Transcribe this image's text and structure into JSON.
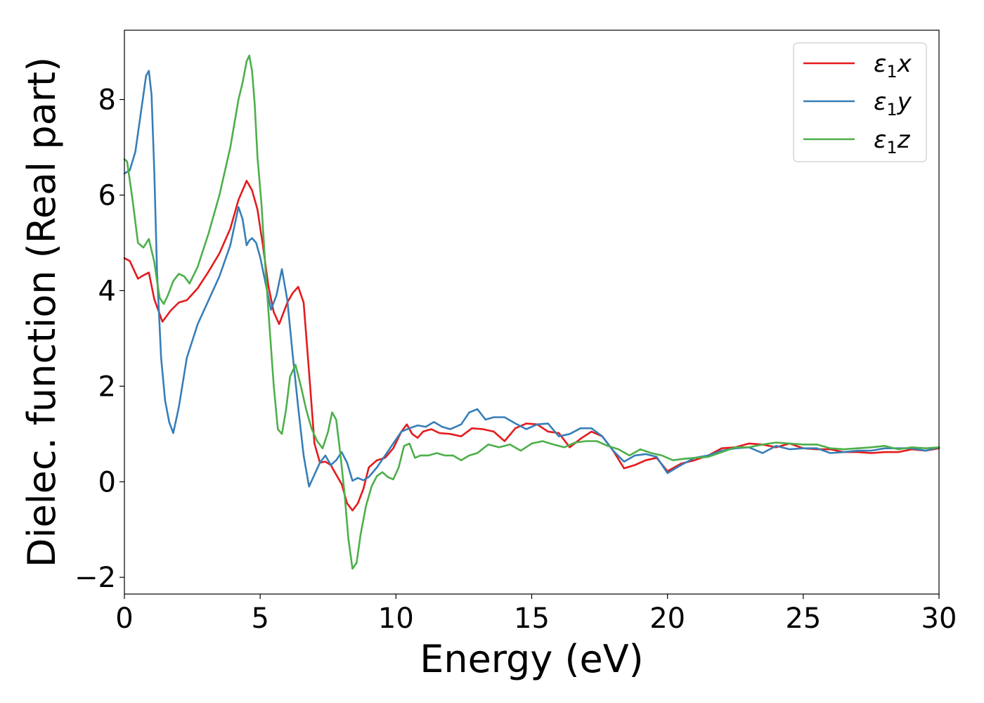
{
  "chart_data": {
    "type": "line",
    "xlabel": "Energy (eV)",
    "ylabel": "Dielec. function (Real part)",
    "xlim": [
      0,
      30
    ],
    "ylim": [
      -2.35,
      9.45
    ],
    "xticks": [
      0,
      5,
      10,
      15,
      20,
      25,
      30
    ],
    "yticks": [
      -2,
      0,
      2,
      4,
      6,
      8
    ],
    "grid": false,
    "legend_position": "top-right",
    "series": [
      {
        "name": "ε1x",
        "legend_base": "ε",
        "legend_sub": "1",
        "legend_tail": "x",
        "color": "#e41a1c",
        "x": [
          0,
          0.2,
          0.5,
          0.7,
          0.9,
          1.1,
          1.4,
          1.7,
          2.0,
          2.3,
          2.7,
          3.1,
          3.5,
          3.9,
          4.2,
          4.5,
          4.7,
          4.9,
          5.1,
          5.3,
          5.5,
          5.7,
          6.0,
          6.2,
          6.4,
          6.6,
          6.8,
          7.0,
          7.2,
          7.4,
          7.6,
          7.8,
          8.0,
          8.2,
          8.4,
          8.6,
          8.8,
          9.0,
          9.3,
          9.6,
          9.9,
          10.2,
          10.4,
          10.6,
          10.8,
          11.0,
          11.3,
          11.6,
          12.0,
          12.4,
          12.8,
          13.2,
          13.6,
          14.0,
          14.4,
          14.8,
          15.2,
          15.6,
          16.0,
          16.4,
          16.8,
          17.2,
          17.6,
          18.0,
          18.4,
          18.8,
          19.2,
          19.6,
          20.0,
          20.5,
          21.0,
          21.5,
          22.0,
          22.5,
          23.0,
          23.5,
          24.0,
          24.5,
          25.0,
          25.5,
          26.0,
          26.5,
          27.0,
          27.5,
          28.0,
          28.5,
          29.0,
          29.5,
          30.0
        ],
        "values": [
          4.68,
          4.62,
          4.25,
          4.32,
          4.38,
          3.82,
          3.35,
          3.58,
          3.75,
          3.8,
          4.05,
          4.4,
          4.78,
          5.3,
          5.9,
          6.3,
          6.1,
          5.7,
          4.95,
          4.1,
          3.55,
          3.3,
          3.75,
          3.95,
          4.08,
          3.75,
          2.3,
          0.8,
          0.4,
          0.42,
          0.35,
          0.15,
          -0.05,
          -0.45,
          -0.6,
          -0.45,
          -0.15,
          0.3,
          0.45,
          0.5,
          0.7,
          1.05,
          1.2,
          1.0,
          0.92,
          1.05,
          1.1,
          1.02,
          1.0,
          0.95,
          1.12,
          1.1,
          1.05,
          0.85,
          1.12,
          1.22,
          1.2,
          1.05,
          1.02,
          0.72,
          0.9,
          1.05,
          0.95,
          0.65,
          0.28,
          0.35,
          0.45,
          0.5,
          0.22,
          0.38,
          0.45,
          0.55,
          0.7,
          0.72,
          0.8,
          0.78,
          0.72,
          0.8,
          0.7,
          0.68,
          0.68,
          0.62,
          0.62,
          0.6,
          0.62,
          0.62,
          0.68,
          0.65,
          0.7
        ]
      },
      {
        "name": "ε1y",
        "legend_base": "ε",
        "legend_sub": "1",
        "legend_tail": "y",
        "color": "#377eb8",
        "x": [
          0,
          0.2,
          0.4,
          0.6,
          0.8,
          0.9,
          1.0,
          1.1,
          1.2,
          1.35,
          1.5,
          1.65,
          1.8,
          2.0,
          2.3,
          2.7,
          3.1,
          3.5,
          3.9,
          4.2,
          4.35,
          4.5,
          4.6,
          4.7,
          4.85,
          5.0,
          5.2,
          5.4,
          5.6,
          5.8,
          6.0,
          6.2,
          6.4,
          6.6,
          6.8,
          7.0,
          7.2,
          7.4,
          7.6,
          7.8,
          8.0,
          8.2,
          8.4,
          8.6,
          8.8,
          9.0,
          9.3,
          9.6,
          9.9,
          10.2,
          10.5,
          10.8,
          11.1,
          11.4,
          11.7,
          12.0,
          12.4,
          12.7,
          13.0,
          13.3,
          13.6,
          14.0,
          14.4,
          14.8,
          15.2,
          15.6,
          16.0,
          16.4,
          16.8,
          17.2,
          17.6,
          18.0,
          18.4,
          18.8,
          19.2,
          19.6,
          20.0,
          20.5,
          21.0,
          21.5,
          22.0,
          22.5,
          23.0,
          23.5,
          24.0,
          24.5,
          25.0,
          25.5,
          26.0,
          26.5,
          27.0,
          27.5,
          28.0,
          28.5,
          29.0,
          29.5,
          30.0
        ],
        "values": [
          6.45,
          6.52,
          6.9,
          7.7,
          8.5,
          8.6,
          8.1,
          6.5,
          4.4,
          2.6,
          1.7,
          1.25,
          1.02,
          1.55,
          2.6,
          3.3,
          3.8,
          4.3,
          4.95,
          5.75,
          5.5,
          4.95,
          5.05,
          5.1,
          5.0,
          4.7,
          4.15,
          3.6,
          3.9,
          4.45,
          3.8,
          2.65,
          1.55,
          0.55,
          -0.1,
          0.15,
          0.4,
          0.55,
          0.35,
          0.45,
          0.62,
          0.4,
          0.02,
          0.08,
          0.03,
          0.1,
          0.3,
          0.55,
          0.8,
          1.05,
          1.12,
          1.18,
          1.15,
          1.25,
          1.15,
          1.1,
          1.2,
          1.45,
          1.52,
          1.3,
          1.35,
          1.35,
          1.22,
          1.1,
          1.2,
          1.22,
          0.95,
          1.0,
          1.12,
          1.12,
          0.95,
          0.65,
          0.42,
          0.55,
          0.58,
          0.52,
          0.18,
          0.35,
          0.5,
          0.55,
          0.65,
          0.7,
          0.72,
          0.6,
          0.75,
          0.68,
          0.7,
          0.7,
          0.6,
          0.62,
          0.65,
          0.65,
          0.7,
          0.7,
          0.7,
          0.65,
          0.72
        ]
      },
      {
        "name": "ε1z",
        "legend_base": "ε",
        "legend_sub": "1",
        "legend_tail": "z",
        "color": "#4daf4a",
        "x": [
          0,
          0.1,
          0.3,
          0.5,
          0.7,
          0.9,
          1.1,
          1.2,
          1.3,
          1.45,
          1.6,
          1.8,
          2.0,
          2.2,
          2.4,
          2.7,
          3.1,
          3.5,
          3.9,
          4.2,
          4.35,
          4.5,
          4.6,
          4.7,
          4.8,
          4.9,
          5.05,
          5.2,
          5.35,
          5.5,
          5.65,
          5.8,
          5.95,
          6.1,
          6.3,
          6.5,
          6.7,
          6.9,
          7.1,
          7.3,
          7.5,
          7.65,
          7.8,
          7.95,
          8.1,
          8.25,
          8.4,
          8.55,
          8.7,
          8.9,
          9.1,
          9.3,
          9.5,
          9.7,
          9.9,
          10.1,
          10.3,
          10.5,
          10.7,
          10.9,
          11.2,
          11.5,
          11.8,
          12.1,
          12.4,
          12.7,
          13.0,
          13.4,
          13.8,
          14.2,
          14.6,
          15.0,
          15.4,
          15.8,
          16.2,
          16.6,
          17.0,
          17.4,
          17.8,
          18.2,
          18.6,
          19.0,
          19.4,
          19.8,
          20.2,
          20.6,
          21.0,
          21.5,
          22.0,
          22.5,
          23.0,
          23.5,
          24.0,
          24.5,
          25.0,
          25.5,
          26.0,
          26.5,
          27.0,
          27.5,
          28.0,
          28.5,
          29.0,
          29.5,
          30.0
        ],
        "values": [
          6.75,
          6.7,
          5.9,
          5.0,
          4.9,
          5.08,
          4.6,
          4.2,
          3.85,
          3.72,
          3.9,
          4.2,
          4.35,
          4.3,
          4.15,
          4.5,
          5.2,
          6.0,
          7.0,
          8.0,
          8.35,
          8.8,
          8.92,
          8.6,
          7.9,
          6.8,
          5.8,
          4.4,
          3.2,
          2.0,
          1.1,
          1.0,
          1.5,
          2.2,
          2.45,
          2.0,
          1.5,
          1.1,
          0.85,
          0.7,
          1.05,
          1.45,
          1.3,
          0.6,
          -0.2,
          -1.2,
          -1.82,
          -1.7,
          -1.1,
          -0.5,
          -0.1,
          0.12,
          0.2,
          0.1,
          0.05,
          0.3,
          0.75,
          0.8,
          0.5,
          0.55,
          0.55,
          0.6,
          0.55,
          0.55,
          0.45,
          0.55,
          0.6,
          0.78,
          0.72,
          0.78,
          0.65,
          0.8,
          0.85,
          0.78,
          0.72,
          0.82,
          0.85,
          0.85,
          0.75,
          0.68,
          0.55,
          0.68,
          0.6,
          0.55,
          0.45,
          0.48,
          0.5,
          0.52,
          0.62,
          0.72,
          0.72,
          0.78,
          0.82,
          0.8,
          0.78,
          0.78,
          0.7,
          0.68,
          0.7,
          0.72,
          0.75,
          0.68,
          0.72,
          0.7,
          0.72
        ]
      }
    ]
  }
}
